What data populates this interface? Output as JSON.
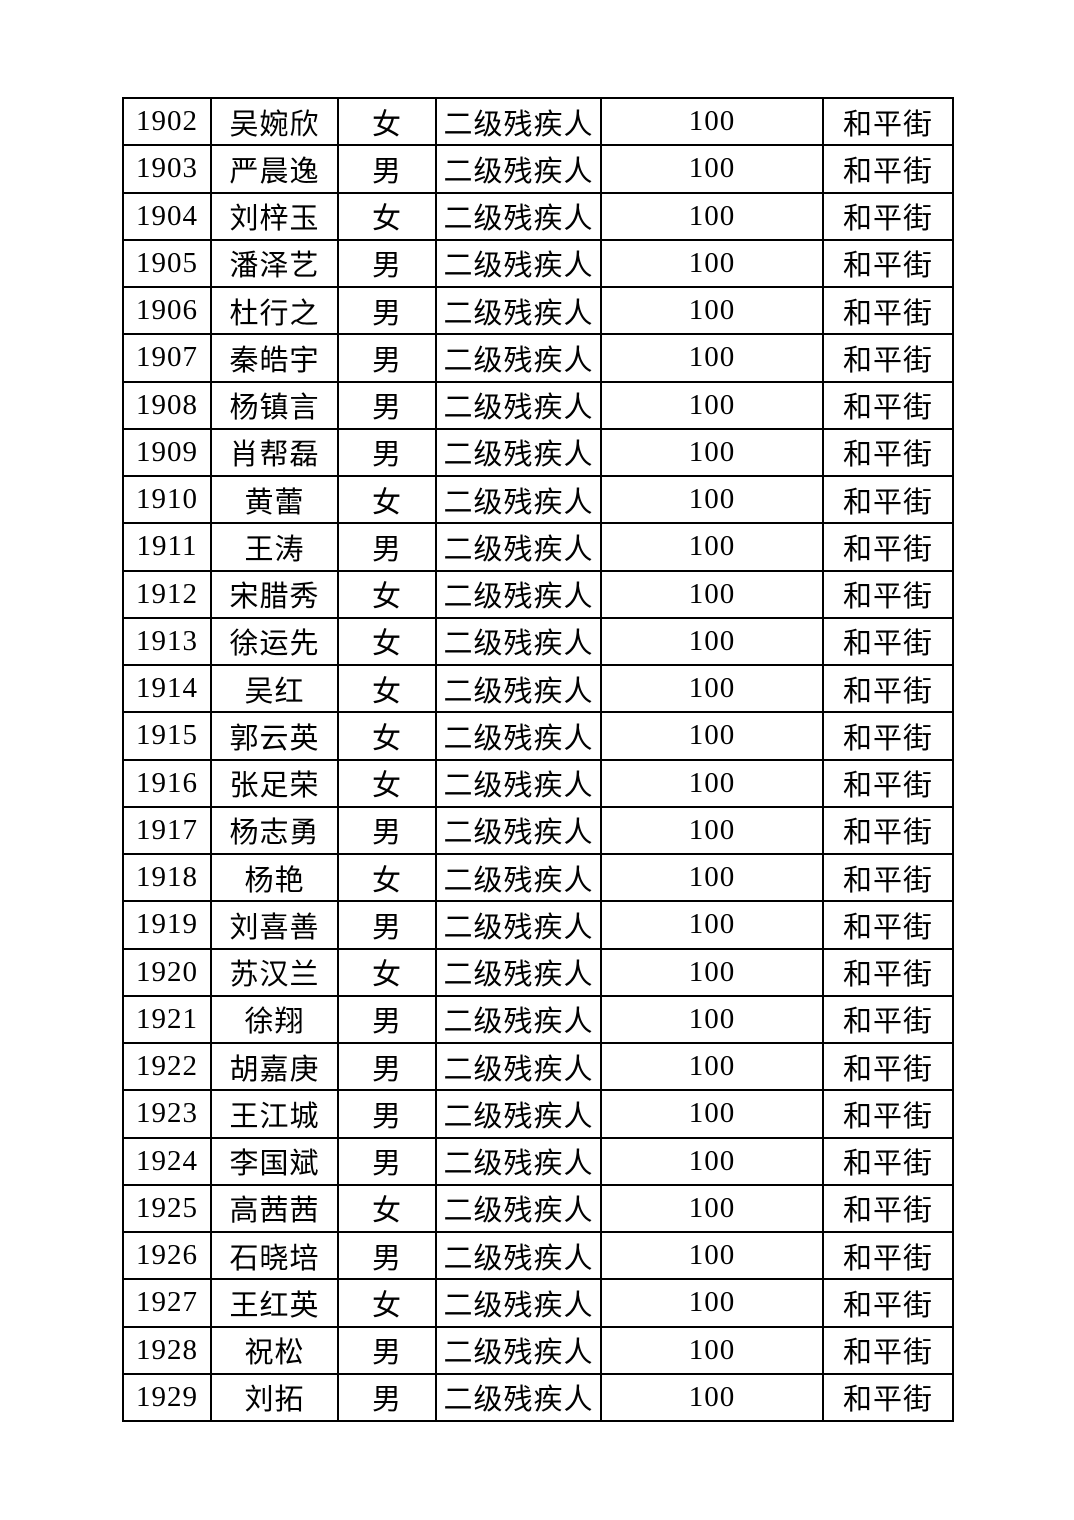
{
  "page": {
    "background_color": "#ffffff",
    "text_color": "#000000",
    "border_color": "#000000"
  },
  "table": {
    "rows": [
      [
        "1902",
        "吴婉欣",
        "女",
        "二级残疾人",
        "100",
        "和平街"
      ],
      [
        "1903",
        "严晨逸",
        "男",
        "二级残疾人",
        "100",
        "和平街"
      ],
      [
        "1904",
        "刘梓玉",
        "女",
        "二级残疾人",
        "100",
        "和平街"
      ],
      [
        "1905",
        "潘泽艺",
        "男",
        "二级残疾人",
        "100",
        "和平街"
      ],
      [
        "1906",
        "杜行之",
        "男",
        "二级残疾人",
        "100",
        "和平街"
      ],
      [
        "1907",
        "秦皓宇",
        "男",
        "二级残疾人",
        "100",
        "和平街"
      ],
      [
        "1908",
        "杨镇言",
        "男",
        "二级残疾人",
        "100",
        "和平街"
      ],
      [
        "1909",
        "肖帮磊",
        "男",
        "二级残疾人",
        "100",
        "和平街"
      ],
      [
        "1910",
        "黄蕾",
        "女",
        "二级残疾人",
        "100",
        "和平街"
      ],
      [
        "1911",
        "王涛",
        "男",
        "二级残疾人",
        "100",
        "和平街"
      ],
      [
        "1912",
        "宋腊秀",
        "女",
        "二级残疾人",
        "100",
        "和平街"
      ],
      [
        "1913",
        "徐运先",
        "女",
        "二级残疾人",
        "100",
        "和平街"
      ],
      [
        "1914",
        "吴红",
        "女",
        "二级残疾人",
        "100",
        "和平街"
      ],
      [
        "1915",
        "郭云英",
        "女",
        "二级残疾人",
        "100",
        "和平街"
      ],
      [
        "1916",
        "张足荣",
        "女",
        "二级残疾人",
        "100",
        "和平街"
      ],
      [
        "1917",
        "杨志勇",
        "男",
        "二级残疾人",
        "100",
        "和平街"
      ],
      [
        "1918",
        "杨艳",
        "女",
        "二级残疾人",
        "100",
        "和平街"
      ],
      [
        "1919",
        "刘喜善",
        "男",
        "二级残疾人",
        "100",
        "和平街"
      ],
      [
        "1920",
        "苏汉兰",
        "女",
        "二级残疾人",
        "100",
        "和平街"
      ],
      [
        "1921",
        "徐翔",
        "男",
        "二级残疾人",
        "100",
        "和平街"
      ],
      [
        "1922",
        "胡嘉庚",
        "男",
        "二级残疾人",
        "100",
        "和平街"
      ],
      [
        "1923",
        "王江城",
        "男",
        "二级残疾人",
        "100",
        "和平街"
      ],
      [
        "1924",
        "李国斌",
        "男",
        "二级残疾人",
        "100",
        "和平街"
      ],
      [
        "1925",
        "高茜茜",
        "女",
        "二级残疾人",
        "100",
        "和平街"
      ],
      [
        "1926",
        "石晓培",
        "男",
        "二级残疾人",
        "100",
        "和平街"
      ],
      [
        "1927",
        "王红英",
        "女",
        "二级残疾人",
        "100",
        "和平街"
      ],
      [
        "1928",
        "祝松",
        "男",
        "二级残疾人",
        "100",
        "和平街"
      ],
      [
        "1929",
        "刘拓",
        "男",
        "二级残疾人",
        "100",
        "和平街"
      ]
    ]
  }
}
